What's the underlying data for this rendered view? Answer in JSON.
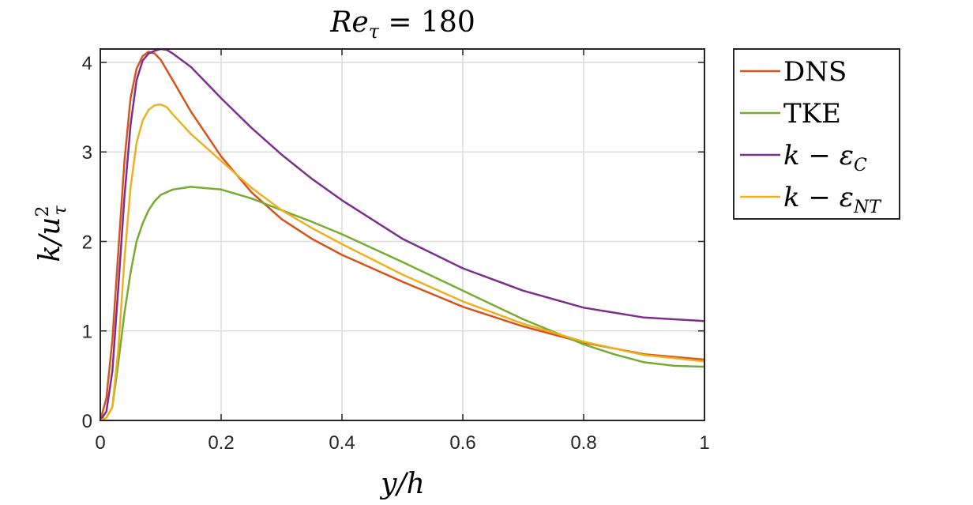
{
  "chart_data": {
    "type": "line",
    "title": "Re_τ = 180",
    "title_parts": {
      "base": "Re",
      "sub": "τ",
      "rest": " = 180"
    },
    "xlabel": "y/h",
    "ylabel": "k/u_τ^2",
    "ylabel_parts": {
      "base": "k/u",
      "sup": "2",
      "sub": "τ"
    },
    "xlim": [
      0,
      1
    ],
    "ylim": [
      0,
      4.15
    ],
    "xticks": [
      0,
      0.2,
      0.4,
      0.6,
      0.8,
      1
    ],
    "xtick_labels": [
      "0",
      "0.2",
      "0.4",
      "0.6",
      "0.8",
      "1"
    ],
    "yticks": [
      0,
      1,
      2,
      3,
      4
    ],
    "ytick_labels": [
      "0",
      "1",
      "2",
      "3",
      "4"
    ],
    "grid": true,
    "legend_position": "outside-right-top",
    "series": [
      {
        "name": "DNS",
        "label_parts": {
          "text": "DNS"
        },
        "color": "#D95319",
        "x": [
          0,
          0.01,
          0.02,
          0.03,
          0.04,
          0.05,
          0.06,
          0.07,
          0.08,
          0.09,
          0.1,
          0.12,
          0.15,
          0.2,
          0.25,
          0.3,
          0.35,
          0.4,
          0.5,
          0.6,
          0.7,
          0.8,
          0.9,
          1.0
        ],
        "y": [
          0,
          0.25,
          0.9,
          1.9,
          2.9,
          3.6,
          3.93,
          4.07,
          4.12,
          4.1,
          4.03,
          3.8,
          3.45,
          2.95,
          2.55,
          2.25,
          2.03,
          1.85,
          1.55,
          1.27,
          1.05,
          0.87,
          0.74,
          0.68
        ]
      },
      {
        "name": "TKE",
        "label_parts": {
          "text": "TKE"
        },
        "color": "#77AC30",
        "x": [
          0,
          0.01,
          0.02,
          0.03,
          0.04,
          0.05,
          0.06,
          0.07,
          0.08,
          0.09,
          0.1,
          0.12,
          0.15,
          0.2,
          0.25,
          0.3,
          0.35,
          0.4,
          0.5,
          0.6,
          0.7,
          0.8,
          0.85,
          0.9,
          0.95,
          1.0
        ],
        "y": [
          0,
          0.03,
          0.15,
          0.65,
          1.2,
          1.65,
          2.0,
          2.2,
          2.35,
          2.45,
          2.52,
          2.58,
          2.61,
          2.58,
          2.48,
          2.35,
          2.22,
          2.08,
          1.77,
          1.45,
          1.13,
          0.85,
          0.74,
          0.65,
          0.61,
          0.6
        ]
      },
      {
        "name": "k − ε_C",
        "label_parts": {
          "base": "k − ε",
          "sub": "C"
        },
        "color": "#7E2F8E",
        "x": [
          0,
          0.01,
          0.02,
          0.03,
          0.04,
          0.05,
          0.06,
          0.07,
          0.08,
          0.09,
          0.1,
          0.11,
          0.12,
          0.15,
          0.2,
          0.25,
          0.3,
          0.35,
          0.4,
          0.5,
          0.6,
          0.7,
          0.8,
          0.9,
          1.0
        ],
        "y": [
          0,
          0.1,
          0.55,
          1.5,
          2.5,
          3.3,
          3.8,
          4.02,
          4.1,
          4.13,
          4.15,
          4.14,
          4.1,
          3.95,
          3.6,
          3.27,
          2.97,
          2.7,
          2.46,
          2.03,
          1.7,
          1.45,
          1.26,
          1.15,
          1.11
        ]
      },
      {
        "name": "k − ε_NT",
        "label_parts": {
          "base": "k − ε",
          "sub": "NT"
        },
        "color": "#EDB120",
        "x": [
          0,
          0.01,
          0.02,
          0.03,
          0.04,
          0.05,
          0.06,
          0.07,
          0.08,
          0.09,
          0.1,
          0.11,
          0.12,
          0.15,
          0.2,
          0.25,
          0.3,
          0.35,
          0.4,
          0.5,
          0.6,
          0.7,
          0.8,
          0.9,
          1.0
        ],
        "y": [
          0,
          0.03,
          0.15,
          0.8,
          1.8,
          2.6,
          3.1,
          3.35,
          3.47,
          3.52,
          3.53,
          3.5,
          3.42,
          3.2,
          2.9,
          2.6,
          2.35,
          2.15,
          1.97,
          1.63,
          1.33,
          1.08,
          0.88,
          0.73,
          0.66
        ]
      }
    ]
  }
}
